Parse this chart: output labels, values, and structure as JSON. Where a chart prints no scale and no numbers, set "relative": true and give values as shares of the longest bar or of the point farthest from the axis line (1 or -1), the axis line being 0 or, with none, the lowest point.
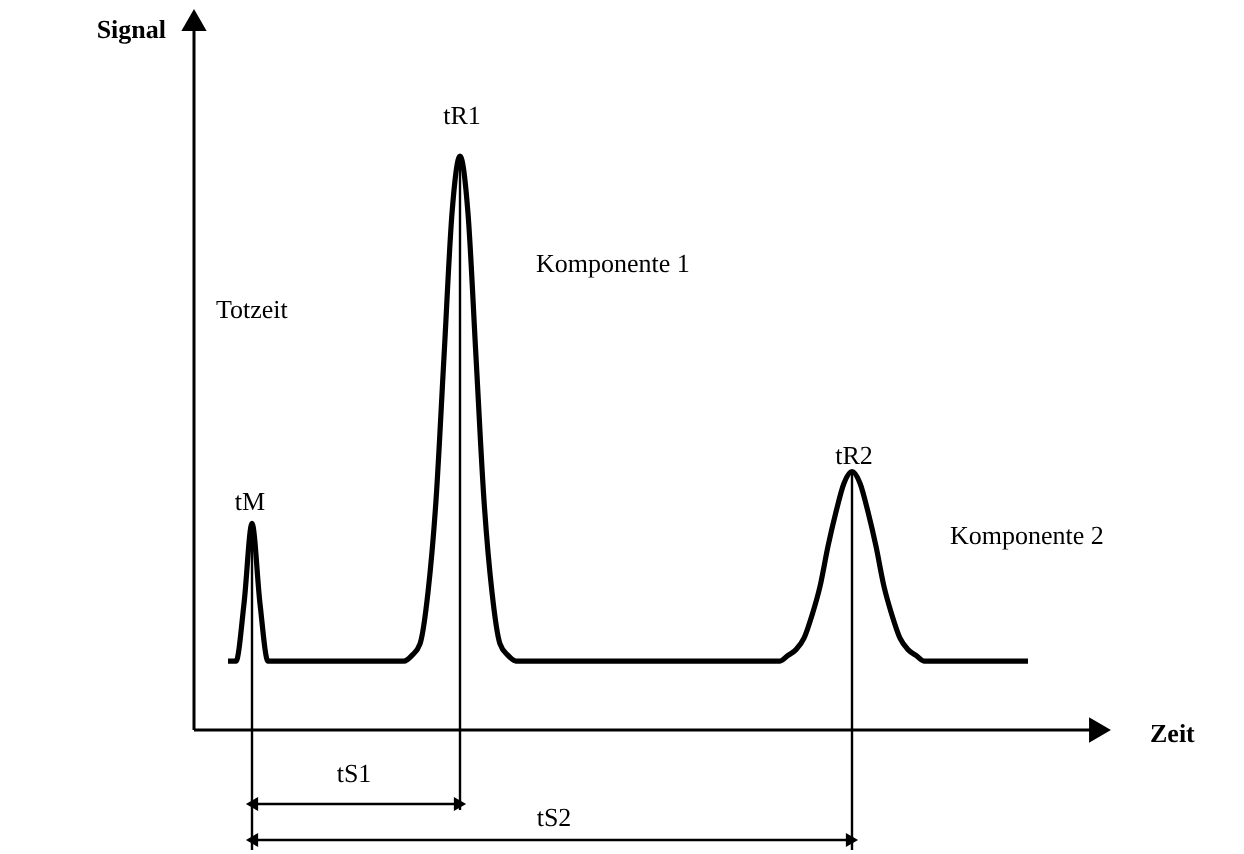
{
  "chart_data": {
    "type": "line",
    "relative": true,
    "tick_labels": false,
    "xlabel": "Zeit",
    "ylabel": "Signal",
    "categories": [
      null,
      null,
      null,
      null,
      null,
      null,
      null,
      null,
      null,
      null,
      null,
      null,
      null,
      null,
      null,
      null,
      null,
      null,
      null,
      null,
      null,
      null,
      null,
      null,
      null,
      null,
      null,
      null,
      null,
      null,
      null,
      null,
      null,
      null,
      null,
      null,
      null,
      null,
      null,
      null,
      null,
      null,
      null,
      null,
      null,
      null,
      null,
      null,
      null,
      null,
      null,
      null,
      null,
      null,
      null,
      null,
      null,
      null,
      null,
      null,
      null,
      null,
      null,
      null,
      null,
      null,
      null,
      null,
      null,
      null,
      null,
      null,
      null,
      null,
      null,
      null,
      null,
      null,
      null,
      null,
      null,
      null,
      null,
      null,
      null,
      null,
      null,
      null,
      null,
      null,
      null,
      null,
      null,
      null,
      null,
      null,
      null,
      null,
      null,
      null,
      null
    ],
    "series": [
      {
        "color": "#000000",
        "values": [
          0.12,
          0.12,
          0.22,
          0.36,
          0.22,
          0.12,
          0.12,
          0.12,
          0.12,
          0.12,
          0.12,
          0.12,
          0.12,
          0.12,
          0.12,
          0.12,
          0.12,
          0.12,
          0.12,
          0.12,
          0.12,
          0.12,
          0.12,
          0.13,
          0.15,
          0.24,
          0.4,
          0.65,
          0.9,
          1.0,
          0.9,
          0.65,
          0.4,
          0.24,
          0.15,
          0.13,
          0.12,
          0.12,
          0.12,
          0.12,
          0.12,
          0.12,
          0.12,
          0.12,
          0.12,
          0.12,
          0.12,
          0.12,
          0.12,
          0.12,
          0.12,
          0.12,
          0.12,
          0.12,
          0.12,
          0.12,
          0.12,
          0.12,
          0.12,
          0.12,
          0.12,
          0.12,
          0.12,
          0.12,
          0.12,
          0.12,
          0.12,
          0.12,
          0.12,
          0.12,
          0.13,
          0.14,
          0.16,
          0.2,
          0.25,
          0.32,
          0.38,
          0.43,
          0.45,
          0.43,
          0.38,
          0.32,
          0.25,
          0.2,
          0.16,
          0.14,
          0.13,
          0.12,
          0.12,
          0.12,
          0.12,
          0.12,
          0.12,
          0.12,
          0.12,
          0.12,
          0.12,
          0.12,
          0.12,
          0.12,
          0.12
        ]
      }
    ],
    "annotations": [
      "Totzeit",
      "tM",
      "tR1",
      "Komponente 1",
      "tR2",
      "Komponente 2",
      "tS1",
      "tS2"
    ]
  }
}
